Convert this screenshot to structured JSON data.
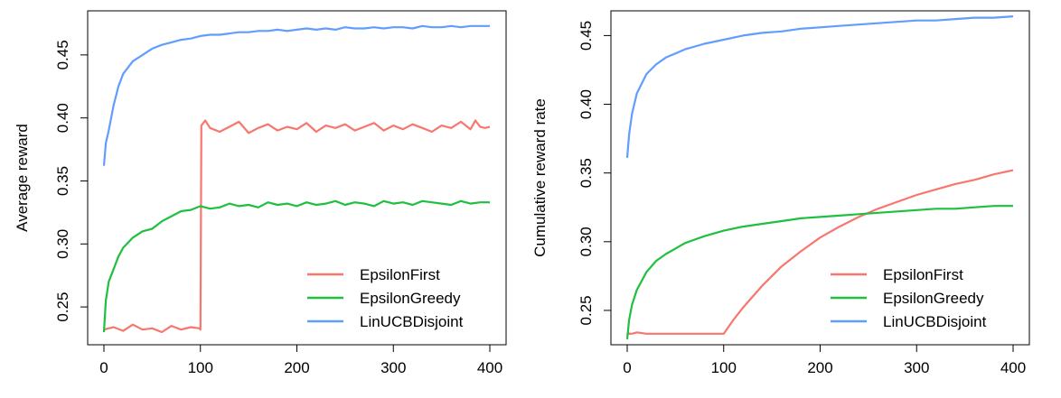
{
  "colors": {
    "EpsilonFirst": "#F8766D",
    "EpsilonGreedy": "#1FBF3F",
    "LinUCBDisjoint": "#619CFF"
  },
  "chart_data": [
    {
      "type": "line",
      "ylabel": "Average reward",
      "xlabel": "",
      "xlim": [
        0,
        400
      ],
      "ylim": [
        0.22,
        0.485
      ],
      "xticks": [
        "0",
        "100",
        "200",
        "300",
        "400"
      ],
      "xtick_values": [
        0,
        100,
        200,
        300,
        400
      ],
      "yticks": [
        "0.25",
        "0.30",
        "0.35",
        "0.40",
        "0.45"
      ],
      "ytick_values": [
        0.25,
        0.3,
        0.35,
        0.4,
        0.45
      ],
      "legend_position": "bottom-right",
      "grid": false,
      "series": [
        {
          "name": "EpsilonFirst",
          "color": "#F8766D",
          "x": [
            0,
            5,
            10,
            20,
            30,
            40,
            50,
            60,
            70,
            80,
            90,
            99,
            100,
            101,
            105,
            110,
            120,
            130,
            140,
            150,
            160,
            170,
            180,
            190,
            200,
            210,
            220,
            230,
            240,
            250,
            260,
            270,
            280,
            290,
            300,
            310,
            320,
            330,
            340,
            350,
            360,
            370,
            380,
            385,
            390,
            395,
            400
          ],
          "y": [
            0.232,
            0.233,
            0.234,
            0.231,
            0.236,
            0.232,
            0.233,
            0.23,
            0.235,
            0.232,
            0.234,
            0.233,
            0.232,
            0.394,
            0.398,
            0.392,
            0.389,
            0.393,
            0.397,
            0.388,
            0.392,
            0.395,
            0.39,
            0.393,
            0.391,
            0.396,
            0.389,
            0.394,
            0.392,
            0.395,
            0.39,
            0.393,
            0.396,
            0.39,
            0.394,
            0.391,
            0.395,
            0.392,
            0.389,
            0.394,
            0.392,
            0.397,
            0.391,
            0.398,
            0.393,
            0.392,
            0.393
          ]
        },
        {
          "name": "EpsilonGreedy",
          "color": "#1FBF3F",
          "x": [
            0,
            2,
            5,
            10,
            15,
            20,
            30,
            40,
            50,
            60,
            70,
            80,
            90,
            100,
            110,
            120,
            130,
            140,
            150,
            160,
            170,
            180,
            190,
            200,
            210,
            220,
            230,
            240,
            250,
            260,
            270,
            280,
            290,
            300,
            310,
            320,
            330,
            340,
            350,
            360,
            370,
            380,
            390,
            400
          ],
          "y": [
            0.23,
            0.255,
            0.27,
            0.28,
            0.29,
            0.297,
            0.305,
            0.31,
            0.312,
            0.318,
            0.322,
            0.326,
            0.327,
            0.33,
            0.328,
            0.329,
            0.332,
            0.33,
            0.331,
            0.329,
            0.333,
            0.331,
            0.332,
            0.33,
            0.333,
            0.331,
            0.332,
            0.334,
            0.331,
            0.333,
            0.332,
            0.33,
            0.334,
            0.332,
            0.333,
            0.331,
            0.334,
            0.333,
            0.332,
            0.331,
            0.334,
            0.332,
            0.333,
            0.333
          ]
        },
        {
          "name": "LinUCBDisjoint",
          "color": "#619CFF",
          "x": [
            0,
            2,
            5,
            10,
            15,
            20,
            30,
            40,
            50,
            60,
            70,
            80,
            90,
            100,
            110,
            120,
            130,
            140,
            150,
            160,
            170,
            180,
            190,
            200,
            210,
            220,
            230,
            240,
            250,
            260,
            270,
            280,
            290,
            300,
            310,
            320,
            330,
            340,
            350,
            360,
            370,
            380,
            390,
            400
          ],
          "y": [
            0.362,
            0.38,
            0.39,
            0.41,
            0.425,
            0.435,
            0.445,
            0.45,
            0.455,
            0.458,
            0.46,
            0.462,
            0.463,
            0.465,
            0.466,
            0.466,
            0.467,
            0.468,
            0.468,
            0.469,
            0.469,
            0.47,
            0.469,
            0.47,
            0.471,
            0.47,
            0.471,
            0.47,
            0.472,
            0.471,
            0.471,
            0.472,
            0.471,
            0.472,
            0.472,
            0.471,
            0.473,
            0.472,
            0.472,
            0.473,
            0.472,
            0.473,
            0.473,
            0.473
          ]
        }
      ]
    },
    {
      "type": "line",
      "ylabel": "Cumulative reward rate",
      "xlabel": "",
      "xlim": [
        0,
        400
      ],
      "ylim": [
        0.225,
        0.468
      ],
      "xticks": [
        "0",
        "100",
        "200",
        "300",
        "400"
      ],
      "xtick_values": [
        0,
        100,
        200,
        300,
        400
      ],
      "yticks": [
        "0.25",
        "0.30",
        "0.35",
        "0.40",
        "0.45"
      ],
      "ytick_values": [
        0.25,
        0.3,
        0.35,
        0.4,
        0.45
      ],
      "legend_position": "bottom-right",
      "grid": false,
      "series": [
        {
          "name": "EpsilonFirst",
          "color": "#F8766D",
          "x": [
            0,
            1,
            2,
            5,
            10,
            20,
            30,
            40,
            50,
            60,
            70,
            80,
            90,
            100,
            110,
            120,
            140,
            160,
            180,
            200,
            220,
            240,
            260,
            280,
            300,
            320,
            340,
            360,
            380,
            400
          ],
          "y": [
            0.232,
            0.234,
            0.233,
            0.233,
            0.234,
            0.233,
            0.233,
            0.233,
            0.233,
            0.233,
            0.233,
            0.233,
            0.233,
            0.233,
            0.243,
            0.252,
            0.268,
            0.282,
            0.293,
            0.303,
            0.311,
            0.318,
            0.324,
            0.329,
            0.334,
            0.338,
            0.342,
            0.345,
            0.349,
            0.352
          ]
        },
        {
          "name": "EpsilonGreedy",
          "color": "#1FBF3F",
          "x": [
            0,
            2,
            5,
            10,
            20,
            30,
            40,
            50,
            60,
            80,
            100,
            120,
            140,
            160,
            180,
            200,
            220,
            240,
            260,
            280,
            300,
            320,
            340,
            360,
            380,
            400
          ],
          "y": [
            0.229,
            0.243,
            0.254,
            0.265,
            0.278,
            0.286,
            0.291,
            0.295,
            0.299,
            0.304,
            0.308,
            0.311,
            0.313,
            0.315,
            0.317,
            0.318,
            0.319,
            0.32,
            0.321,
            0.322,
            0.323,
            0.324,
            0.324,
            0.325,
            0.326,
            0.326
          ]
        },
        {
          "name": "LinUCBDisjoint",
          "color": "#619CFF",
          "x": [
            0,
            2,
            5,
            10,
            20,
            30,
            40,
            50,
            60,
            80,
            100,
            120,
            140,
            160,
            180,
            200,
            220,
            240,
            260,
            280,
            300,
            320,
            340,
            360,
            380,
            400
          ],
          "y": [
            0.361,
            0.378,
            0.393,
            0.408,
            0.422,
            0.429,
            0.434,
            0.437,
            0.44,
            0.444,
            0.447,
            0.45,
            0.452,
            0.453,
            0.455,
            0.456,
            0.457,
            0.458,
            0.459,
            0.46,
            0.461,
            0.461,
            0.462,
            0.463,
            0.463,
            0.464
          ]
        }
      ]
    }
  ]
}
